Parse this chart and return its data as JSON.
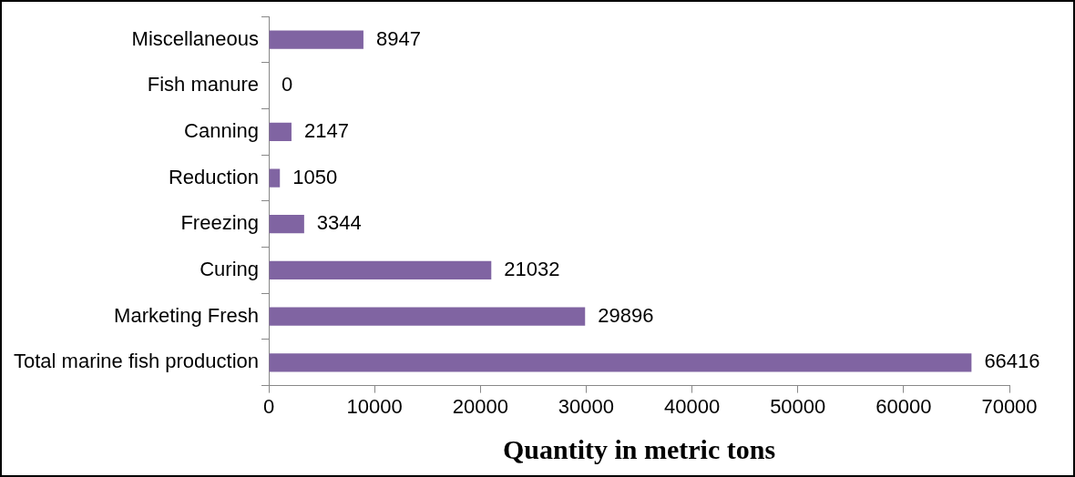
{
  "chart_data": {
    "type": "bar",
    "orientation": "horizontal",
    "xlabel": "Quantity in metric tons",
    "categories": [
      "Miscellaneous",
      "Fish manure",
      "Canning",
      "Reduction",
      "Freezing",
      "Curing",
      "Marketing Fresh",
      "Total marine fish production"
    ],
    "values": [
      8947,
      0,
      2147,
      1050,
      3344,
      21032,
      29896,
      66416
    ],
    "color": "#8064a2",
    "xlim": [
      0,
      70000
    ],
    "xticks": [
      0,
      10000,
      20000,
      30000,
      40000,
      50000,
      60000,
      70000
    ],
    "grid": false,
    "legend": false,
    "data_labels": true
  }
}
